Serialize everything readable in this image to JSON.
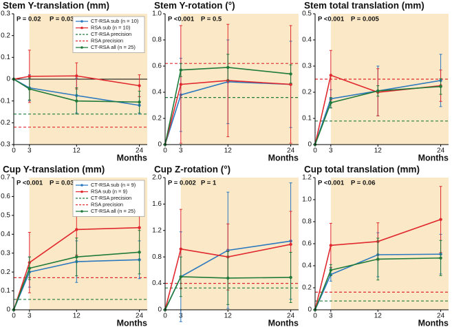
{
  "chart_data": [
    {
      "type": "line",
      "title": "Stem Y-translation (mm)",
      "p_values": [
        "P = 0.02",
        "P = 0.03"
      ],
      "x_label": "Months",
      "x": [
        0,
        3,
        12,
        24
      ],
      "xticks": [
        0,
        3,
        12,
        24
      ],
      "xlim": [
        0,
        25.5
      ],
      "ylim": [
        -0.3,
        0.3
      ],
      "yticks": [
        -0.3,
        -0.2,
        -0.1,
        0,
        0.1,
        0.2,
        0.3
      ],
      "legend": "upper right",
      "series": [
        {
          "name": "CT-RSA sub (n = 10)",
          "color": "#2a78c0",
          "values": [
            0,
            -0.04,
            -0.075,
            -0.12
          ],
          "errors": [
            0,
            0.06,
            0.08,
            0.04
          ]
        },
        {
          "name": "RSA sub (n = 10)",
          "color": "#e0282e",
          "values": [
            0,
            0.013,
            0.015,
            -0.03
          ],
          "errors": [
            0,
            0.12,
            0.06,
            0.05
          ]
        },
        {
          "name": "CT-RSA all (n = 25)",
          "color": "#1f7a3a",
          "values": [
            0,
            -0.045,
            -0.1,
            -0.105
          ],
          "errors": [
            0,
            0.05,
            0.06,
            0.05
          ]
        }
      ],
      "reference_lines": [
        {
          "name": "CT-RSA precision",
          "color": "#1f7a3a",
          "value": -0.16
        },
        {
          "name": "RSA precision",
          "color": "#e0282e",
          "value": -0.22
        }
      ]
    },
    {
      "type": "line",
      "title": "Stem Y-rotation (°)",
      "p_values": [
        "P <0.001",
        "P = 0.5"
      ],
      "x_label": "Months",
      "x": [
        0,
        3,
        12,
        24
      ],
      "xticks": [
        0,
        3,
        12,
        24
      ],
      "xlim": [
        0,
        25.5
      ],
      "ylim": [
        0,
        1
      ],
      "yticks": [
        0,
        0.2,
        0.4,
        0.6,
        0.8,
        {
          "value": 1,
          "label": "1.0"
        }
      ],
      "series": [
        {
          "color": "#2a78c0",
          "values": [
            0,
            0.38,
            0.48,
            0.46
          ],
          "errors": [
            0,
            0.28,
            0.32,
            0.33
          ]
        },
        {
          "color": "#e0282e",
          "values": [
            0,
            0.46,
            0.49,
            0.46
          ],
          "errors": [
            0,
            0.45,
            0.43,
            0.45
          ]
        },
        {
          "color": "#1f7a3a",
          "values": [
            0,
            0.57,
            0.59,
            0.54
          ],
          "errors": [
            0,
            0.05,
            0.1,
            0.07
          ]
        }
      ],
      "reference_lines": [
        {
          "color": "#1f7a3a",
          "value": 0.36
        },
        {
          "color": "#e0282e",
          "value": 0.62
        }
      ]
    },
    {
      "type": "line",
      "title": "Stem total translation (mm)",
      "p_values": [
        "P <0.001",
        "P = 0.005"
      ],
      "x_label": "Months",
      "x": [
        0,
        3,
        12,
        24
      ],
      "xticks": [
        0,
        3,
        12,
        24
      ],
      "xlim": [
        0,
        25.5
      ],
      "ylim": [
        0,
        0.5
      ],
      "yticks": [
        0,
        0.1,
        0.2,
        0.3,
        0.4,
        0.5
      ],
      "series": [
        {
          "color": "#2a78c0",
          "values": [
            0,
            0.175,
            0.205,
            0.245
          ],
          "errors": [
            0,
            0.035,
            0.095,
            0.1
          ]
        },
        {
          "color": "#e0282e",
          "values": [
            0,
            0.265,
            0.2,
            0.225
          ],
          "errors": [
            0,
            0.095,
            0.09,
            0.06
          ]
        },
        {
          "color": "#1f7a3a",
          "values": [
            0,
            0.16,
            0.205,
            0.222
          ],
          "errors": [
            0,
            0.02,
            0.02,
            0.03
          ]
        }
      ],
      "reference_lines": [
        {
          "color": "#1f7a3a",
          "value": 0.09
        },
        {
          "color": "#e0282e",
          "value": 0.25
        }
      ]
    },
    {
      "type": "line",
      "title": "Cup Y-translation (mm)",
      "p_values": [
        "P <0.001",
        "P = 0.03"
      ],
      "x_label": "Months",
      "x": [
        0,
        3,
        12,
        24
      ],
      "xticks": [
        0,
        3,
        12,
        24
      ],
      "xlim": [
        0,
        25.5
      ],
      "ylim": [
        0,
        0.7
      ],
      "yticks": [
        0,
        0.1,
        0.2,
        0.3,
        0.4,
        0.5,
        0.6,
        0.7
      ],
      "legend": "upper right",
      "series": [
        {
          "name": "CT-RSA sub (n = 9)",
          "color": "#2a78c0",
          "values": [
            0,
            0.2,
            0.255,
            0.265
          ],
          "errors": [
            0,
            0.08,
            0.11,
            0.1
          ]
        },
        {
          "name": "RSA sub (n = 9)",
          "color": "#e0282e",
          "values": [
            0,
            0.25,
            0.425,
            0.435
          ],
          "errors": [
            0,
            0.16,
            0.135,
            0.13
          ]
        },
        {
          "name": "CT-RSA all (n = 25)",
          "color": "#1f7a3a",
          "values": [
            0,
            0.22,
            0.28,
            0.305
          ],
          "errors": [
            0,
            0.06,
            0.1,
            0.115
          ]
        }
      ],
      "reference_lines": [
        {
          "name": "CT-RSA precision",
          "color": "#1f7a3a",
          "value": 0.055
        },
        {
          "name": "RSA precision",
          "color": "#e0282e",
          "value": 0.17
        }
      ]
    },
    {
      "type": "line",
      "title": "Cup Z-rotation (°)",
      "p_values": [
        "P = 0.002",
        "P = 1"
      ],
      "x_label": "Months",
      "x": [
        0,
        3,
        12,
        24
      ],
      "xticks": [
        0,
        3,
        12,
        24
      ],
      "xlim": [
        0,
        25.5
      ],
      "ylim": [
        0,
        2
      ],
      "yticks": [
        0,
        0.4,
        0.8,
        1.2,
        1.6,
        {
          "value": 2,
          "label": "2.0"
        }
      ],
      "series": [
        {
          "color": "#2a78c0",
          "values": [
            0,
            0.5,
            0.9,
            1.04
          ],
          "errors": [
            0,
            0.68,
            0.88,
            0.88
          ]
        },
        {
          "color": "#e0282e",
          "values": [
            0,
            0.92,
            0.8,
            0.99
          ],
          "errors": [
            0,
            0.6,
            0.5,
            0.5
          ]
        },
        {
          "color": "#1f7a3a",
          "values": [
            0,
            0.5,
            0.48,
            0.49
          ],
          "errors": [
            0,
            0.3,
            0.4,
            0.38
          ]
        }
      ],
      "reference_lines": [
        {
          "color": "#1f7a3a",
          "value": 0.33
        },
        {
          "color": "#e0282e",
          "value": 0.4
        }
      ]
    },
    {
      "type": "line",
      "title": "Cup total translation (mm)",
      "p_values": [
        "P <0.001",
        "P = 0.06"
      ],
      "x_label": "Months",
      "x": [
        0,
        3,
        12,
        24
      ],
      "xticks": [
        0,
        3,
        12,
        24
      ],
      "xlim": [
        0,
        25.5
      ],
      "ylim": [
        0,
        1.2
      ],
      "yticks": [
        0,
        0.2,
        0.4,
        0.6,
        0.8,
        {
          "value": 1,
          "label": "1.0"
        },
        1.2
      ],
      "series": [
        {
          "color": "#2a78c0",
          "values": [
            0,
            0.32,
            0.5,
            0.505
          ],
          "errors": [
            0,
            0.06,
            0.2,
            0.18
          ]
        },
        {
          "color": "#e0282e",
          "values": [
            0,
            0.585,
            0.62,
            0.82
          ],
          "errors": [
            0,
            0.2,
            0.17,
            0.3
          ]
        },
        {
          "color": "#1f7a3a",
          "values": [
            0,
            0.36,
            0.46,
            0.47
          ],
          "errors": [
            0,
            0.05,
            0.19,
            0.16
          ]
        }
      ],
      "reference_lines": [
        {
          "color": "#1f7a3a",
          "value": 0.08
        },
        {
          "color": "#e0282e",
          "value": 0.16
        }
      ]
    }
  ]
}
